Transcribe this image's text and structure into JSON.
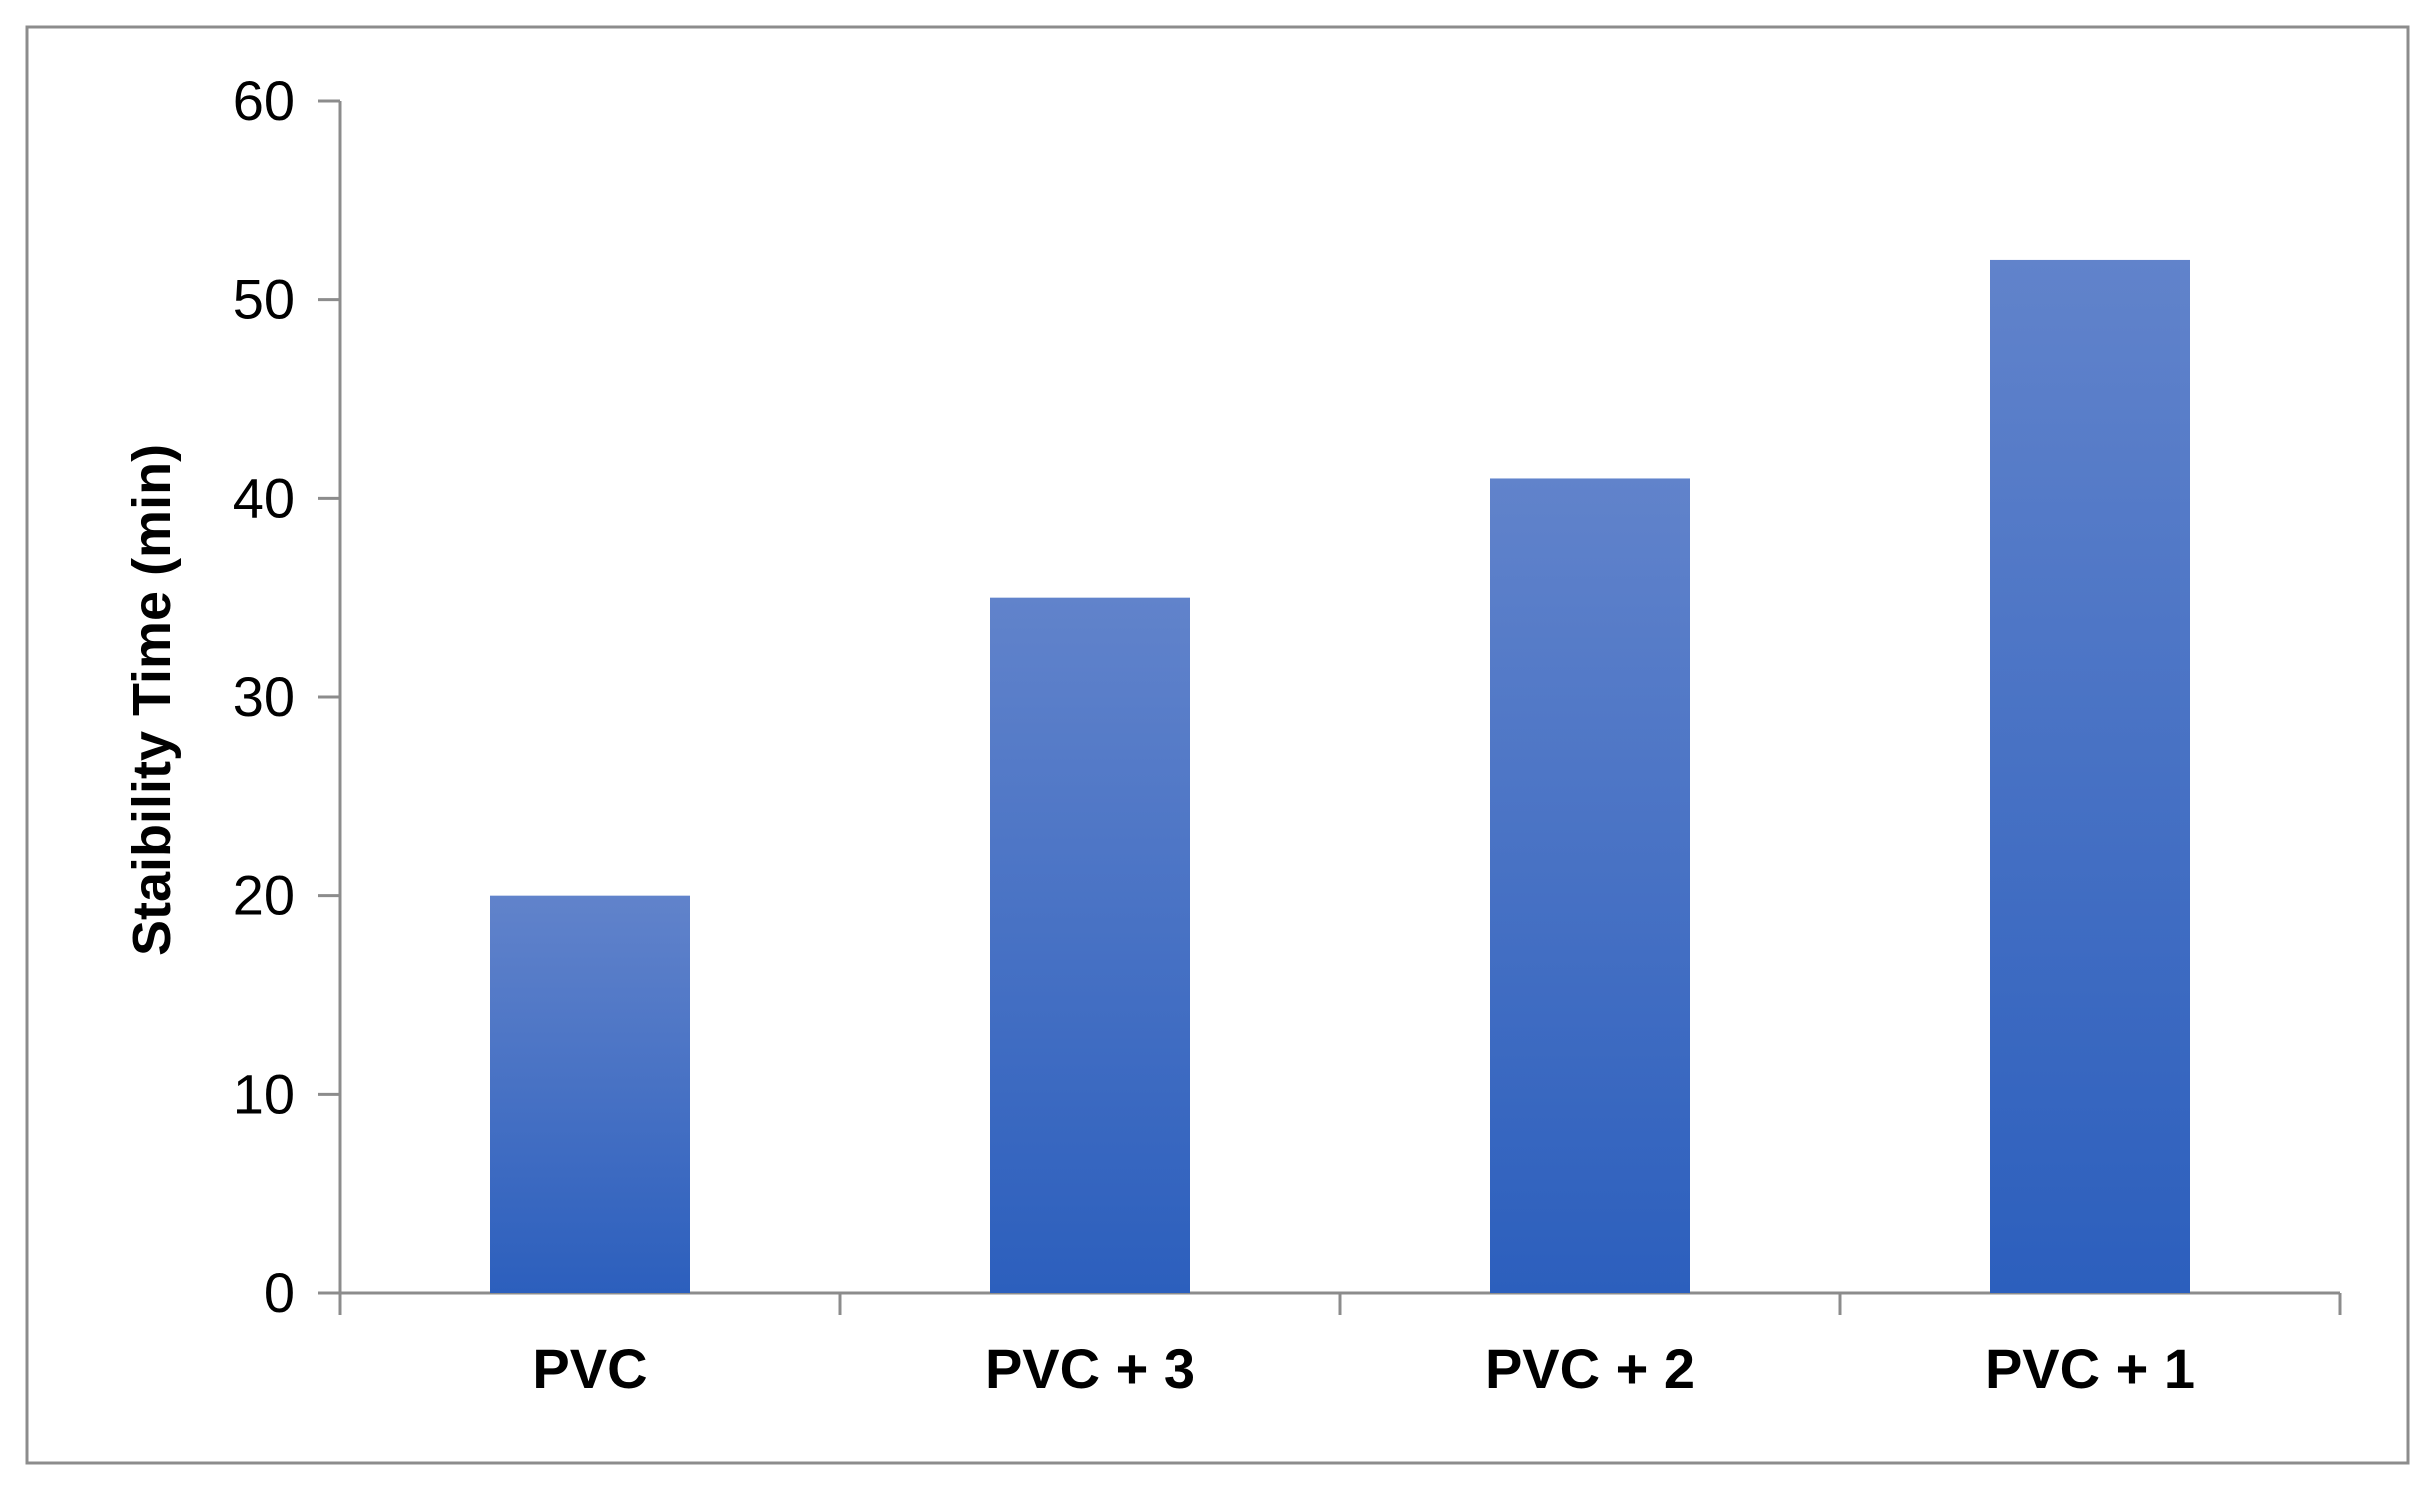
{
  "chart_data": {
    "type": "bar",
    "categories": [
      "PVC",
      "PVC + 3",
      "PVC + 2",
      "PVC + 1"
    ],
    "series": [
      {
        "values": [
          20,
          35,
          41,
          52
        ]
      }
    ],
    "title": "",
    "xlabel": "",
    "ylabel": "Staibility Time (min)",
    "ylim": [
      0,
      60
    ],
    "yticks": [
      0,
      10,
      20,
      30,
      40,
      50,
      60
    ],
    "grid": false,
    "legend": "none",
    "colors": {
      "bar_top": "#6183CB",
      "bar_bottom": "#2C5FBD",
      "axis": "#8C8C8C",
      "frame": "#8C8C8C"
    }
  }
}
